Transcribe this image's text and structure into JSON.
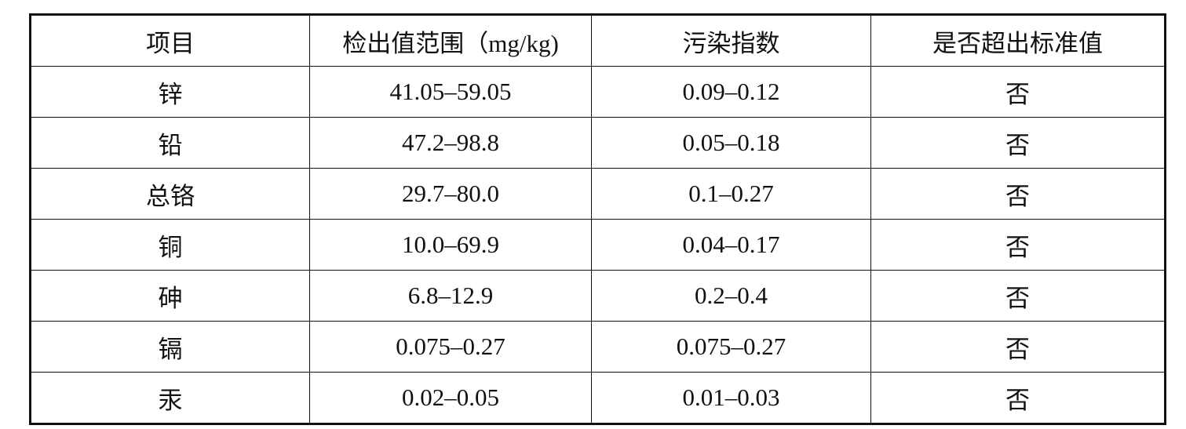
{
  "table": {
    "header": [
      "项目",
      "检出值范围（mg/kg)",
      "污染指数",
      "是否超出标准值"
    ],
    "rows": [
      [
        "锌",
        "41.05–59.05",
        "0.09–0.12",
        "否"
      ],
      [
        "铅",
        "47.2–98.8",
        "0.05–0.18",
        "否"
      ],
      [
        "总铬",
        "29.7–80.0",
        "0.1–0.27",
        "否"
      ],
      [
        "铜",
        "10.0–69.9",
        "0.04–0.17",
        "否"
      ],
      [
        "砷",
        "6.8–12.9",
        "0.2–0.4",
        "否"
      ],
      [
        "镉",
        "0.075–0.27",
        "0.075–0.27",
        "否"
      ],
      [
        "汞",
        "0.02–0.05",
        "0.01–0.03",
        "否"
      ]
    ]
  }
}
